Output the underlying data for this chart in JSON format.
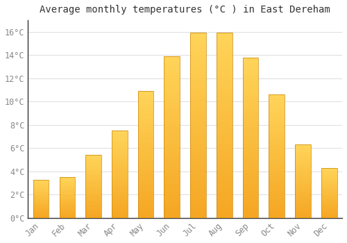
{
  "months": [
    "Jan",
    "Feb",
    "Mar",
    "Apr",
    "May",
    "Jun",
    "Jul",
    "Aug",
    "Sep",
    "Oct",
    "Nov",
    "Dec"
  ],
  "temperatures": [
    3.3,
    3.5,
    5.4,
    7.5,
    10.9,
    13.9,
    15.9,
    15.9,
    13.8,
    10.6,
    6.3,
    4.3
  ],
  "bar_color_bottom": "#F5A623",
  "bar_color_top": "#FFD55A",
  "bar_edge_color": "#C8860A",
  "background_color": "#FFFFFF",
  "plot_bg_color": "#FFFFFF",
  "grid_color": "#DDDDDD",
  "title": "Average monthly temperatures (°C ) in East Dereham",
  "title_fontsize": 10,
  "tick_label_color": "#888888",
  "ylim": [
    0,
    17
  ],
  "yticks": [
    0,
    2,
    4,
    6,
    8,
    10,
    12,
    14,
    16
  ],
  "ytick_labels": [
    "0°C",
    "2°C",
    "4°C",
    "6°C",
    "8°C",
    "10°C",
    "12°C",
    "14°C",
    "16°C"
  ],
  "bar_width": 0.6,
  "n_gradient_steps": 50
}
